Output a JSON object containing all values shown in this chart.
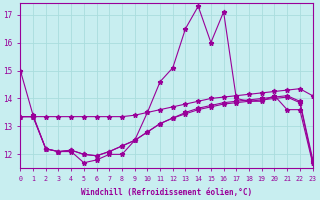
{
  "xlabel": "Windchill (Refroidissement éolien,°C)",
  "bg_color": "#c8eef0",
  "line_color": "#990099",
  "grid_color": "#aadddd",
  "xmin": 0,
  "xmax": 23,
  "ymin": 11.5,
  "ymax": 17.4,
  "yticks": [
    12,
    13,
    14,
    15,
    16,
    17
  ],
  "xticks": [
    0,
    1,
    2,
    3,
    4,
    5,
    6,
    7,
    8,
    9,
    10,
    11,
    12,
    13,
    14,
    15,
    16,
    17,
    18,
    19,
    20,
    21,
    22,
    23
  ],
  "x": [
    0,
    1,
    2,
    3,
    4,
    5,
    6,
    7,
    8,
    9,
    10,
    11,
    12,
    13,
    14,
    15,
    16,
    17,
    18,
    19,
    20,
    21,
    22,
    23
  ],
  "line_main": [
    15.0,
    13.4,
    12.2,
    12.1,
    12.1,
    11.7,
    11.8,
    12.0,
    12.0,
    12.5,
    13.5,
    14.6,
    15.1,
    16.5,
    17.3,
    16.0,
    17.1,
    14.0,
    13.9,
    13.9,
    14.1,
    13.6,
    13.6,
    11.7
  ],
  "line_flat1": [
    13.35,
    13.35,
    13.35,
    13.35,
    13.35,
    13.35,
    13.35,
    13.35,
    13.35,
    13.4,
    13.5,
    13.6,
    13.7,
    13.8,
    13.9,
    14.0,
    14.05,
    14.1,
    14.15,
    14.2,
    14.25,
    14.3,
    14.35,
    14.1
  ],
  "line_flat2": [
    13.35,
    13.35,
    12.2,
    12.1,
    12.15,
    12.0,
    11.95,
    12.1,
    12.3,
    12.5,
    12.8,
    13.1,
    13.3,
    13.5,
    13.65,
    13.75,
    13.85,
    13.9,
    13.95,
    14.0,
    14.05,
    14.1,
    13.9,
    11.85
  ],
  "line_flat3": [
    13.35,
    13.35,
    12.2,
    12.1,
    12.15,
    12.0,
    11.95,
    12.1,
    12.3,
    12.5,
    12.8,
    13.1,
    13.3,
    13.45,
    13.6,
    13.7,
    13.8,
    13.85,
    13.9,
    13.95,
    14.0,
    14.05,
    13.85,
    11.75
  ]
}
